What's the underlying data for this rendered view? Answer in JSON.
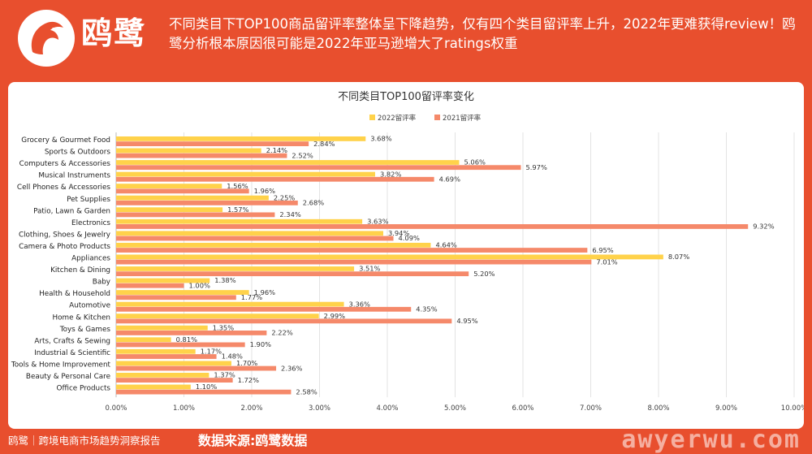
{
  "header": {
    "brand": "鸥鹭",
    "headline": "不同类目下TOP100商品留评率整体呈下降趋势，仅有四个类目留评率上升，2022年更难获得review！鸥鹭分析根本原因很可能是2022年亚马逊增大了ratings权重"
  },
  "footer": {
    "left": "鸥鹭｜跨境电商市场趋势洞察报告",
    "source": "数据来源:鸥鹭数据",
    "watermark": "awyerwu.com"
  },
  "colors": {
    "series2022": "#ffd24a",
    "series2021": "#f5896a",
    "accent": "#e84f2e"
  },
  "chart_data": {
    "type": "bar",
    "orientation": "horizontal",
    "title": "不同类目TOP100留评率变化",
    "legend_position": "top",
    "categories": [
      "Grocery & Gourmet Food",
      "Sports & Outdoors",
      "Computers & Accessories",
      "Musical Instruments",
      "Cell Phones & Accessories",
      "Pet Supplies",
      "Patio, Lawn & Garden",
      "Electronics",
      "Clothing, Shoes & Jewelry",
      "Camera & Photo Products",
      "Appliances",
      "Kitchen & Dining",
      "Baby",
      "Health & Household",
      "Automotive",
      "Home & Kitchen",
      "Toys & Games",
      "Arts, Crafts & Sewing",
      "Industrial & Scientific",
      "Tools & Home Improvement",
      "Beauty & Personal Care",
      "Office Products"
    ],
    "series": [
      {
        "name": "2022留评率",
        "values": [
          3.68,
          2.14,
          5.06,
          3.82,
          1.56,
          2.25,
          1.57,
          3.63,
          3.94,
          4.64,
          8.07,
          3.51,
          1.38,
          1.96,
          3.36,
          2.99,
          1.35,
          0.81,
          1.17,
          1.7,
          1.37,
          1.1
        ]
      },
      {
        "name": "2021留评率",
        "values": [
          2.84,
          2.52,
          5.97,
          4.69,
          1.96,
          2.68,
          2.34,
          9.32,
          4.09,
          6.95,
          7.01,
          5.2,
          1.0,
          1.77,
          4.35,
          4.95,
          2.22,
          1.9,
          1.48,
          2.36,
          1.72,
          2.58
        ]
      }
    ],
    "xlim": [
      0,
      10
    ],
    "x_ticks": [
      "0.00%",
      "1.00%",
      "2.00%",
      "3.00%",
      "4.00%",
      "5.00%",
      "6.00%",
      "7.00%",
      "8.00%",
      "9.00%",
      "10.00%"
    ],
    "grid": true
  }
}
